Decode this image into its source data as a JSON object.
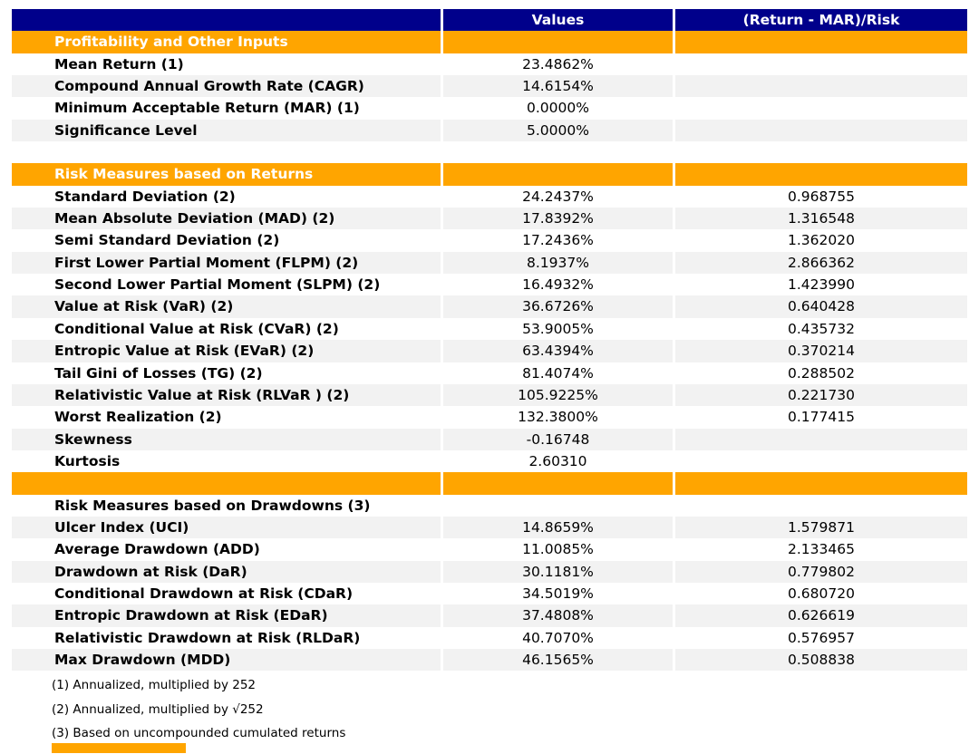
{
  "colors": {
    "header_bg": "#00008B",
    "section_bg": "#FFA500",
    "stripe_bg": "#F2F2F2",
    "header_text": "#FFFFFF"
  },
  "chart_data": {
    "type": "table",
    "columns": [
      "",
      "Values",
      "(Return - MAR)/Risk"
    ],
    "sections": [
      {
        "title": "Profitability and Other Inputs",
        "title_style": "orange",
        "rows": [
          {
            "label": "Mean Return (1)",
            "value": "23.4862%",
            "ratio": ""
          },
          {
            "label": "Compound Annual Growth Rate (CAGR)",
            "value": "14.6154%",
            "ratio": ""
          },
          {
            "label": "Minimum Acceptable Return (MAR) (1)",
            "value": "0.0000%",
            "ratio": ""
          },
          {
            "label": "Significance Level",
            "value": "5.0000%",
            "ratio": ""
          }
        ]
      },
      {
        "title": "Risk Measures based on Returns",
        "title_style": "orange",
        "gap_before": true,
        "rows": [
          {
            "label": "Standard Deviation (2)",
            "value": "24.2437%",
            "ratio": "0.968755"
          },
          {
            "label": "Mean Absolute Deviation (MAD) (2)",
            "value": "17.8392%",
            "ratio": "1.316548"
          },
          {
            "label": "Semi Standard Deviation (2)",
            "value": "17.2436%",
            "ratio": "1.362020"
          },
          {
            "label": "First Lower Partial Moment (FLPM) (2)",
            "value": "8.1937%",
            "ratio": "2.866362"
          },
          {
            "label": "Second Lower Partial Moment (SLPM) (2)",
            "value": "16.4932%",
            "ratio": "1.423990"
          },
          {
            "label": "Value at Risk (VaR) (2)",
            "value": "36.6726%",
            "ratio": "0.640428"
          },
          {
            "label": "Conditional Value at Risk (CVaR) (2)",
            "value": "53.9005%",
            "ratio": "0.435732"
          },
          {
            "label": "Entropic Value at Risk (EVaR) (2)",
            "value": "63.4394%",
            "ratio": "0.370214"
          },
          {
            "label": "Tail Gini of Losses (TG) (2)",
            "value": "81.4074%",
            "ratio": "0.288502"
          },
          {
            "label": "Relativistic Value at Risk (RLVaR ) (2)",
            "value": "105.9225%",
            "ratio": "0.221730"
          },
          {
            "label": "Worst Realization (2)",
            "value": "132.3800%",
            "ratio": "0.177415"
          },
          {
            "label": "Skewness",
            "value": "-0.16748",
            "ratio": ""
          },
          {
            "label": "Kurtosis",
            "value": "2.60310",
            "ratio": ""
          }
        ]
      },
      {
        "title": "Risk Measures based on Drawdowns (3)",
        "title_style": "plain",
        "orange_row_before": true,
        "rows": [
          {
            "label": "Ulcer Index (UCI)",
            "value": "14.8659%",
            "ratio": "1.579871"
          },
          {
            "label": "Average Drawdown (ADD)",
            "value": "11.0085%",
            "ratio": "2.133465"
          },
          {
            "label": "Drawdown at Risk (DaR)",
            "value": "30.1181%",
            "ratio": "0.779802"
          },
          {
            "label": "Conditional Drawdown at Risk (CDaR)",
            "value": "34.5019%",
            "ratio": "0.680720"
          },
          {
            "label": "Entropic Drawdown at Risk (EDaR)",
            "value": "37.4808%",
            "ratio": "0.626619"
          },
          {
            "label": "Relativistic Drawdown at Risk (RLDaR)",
            "value": "40.7070%",
            "ratio": "0.576957"
          },
          {
            "label": "Max Drawdown (MDD)",
            "value": "46.1565%",
            "ratio": "0.508838"
          }
        ]
      }
    ],
    "footnotes": [
      "(1) Annualized, multiplied by 252",
      "(2) Annualized, multiplied by √252",
      "(3) Based on uncompounded cumulated returns"
    ]
  }
}
